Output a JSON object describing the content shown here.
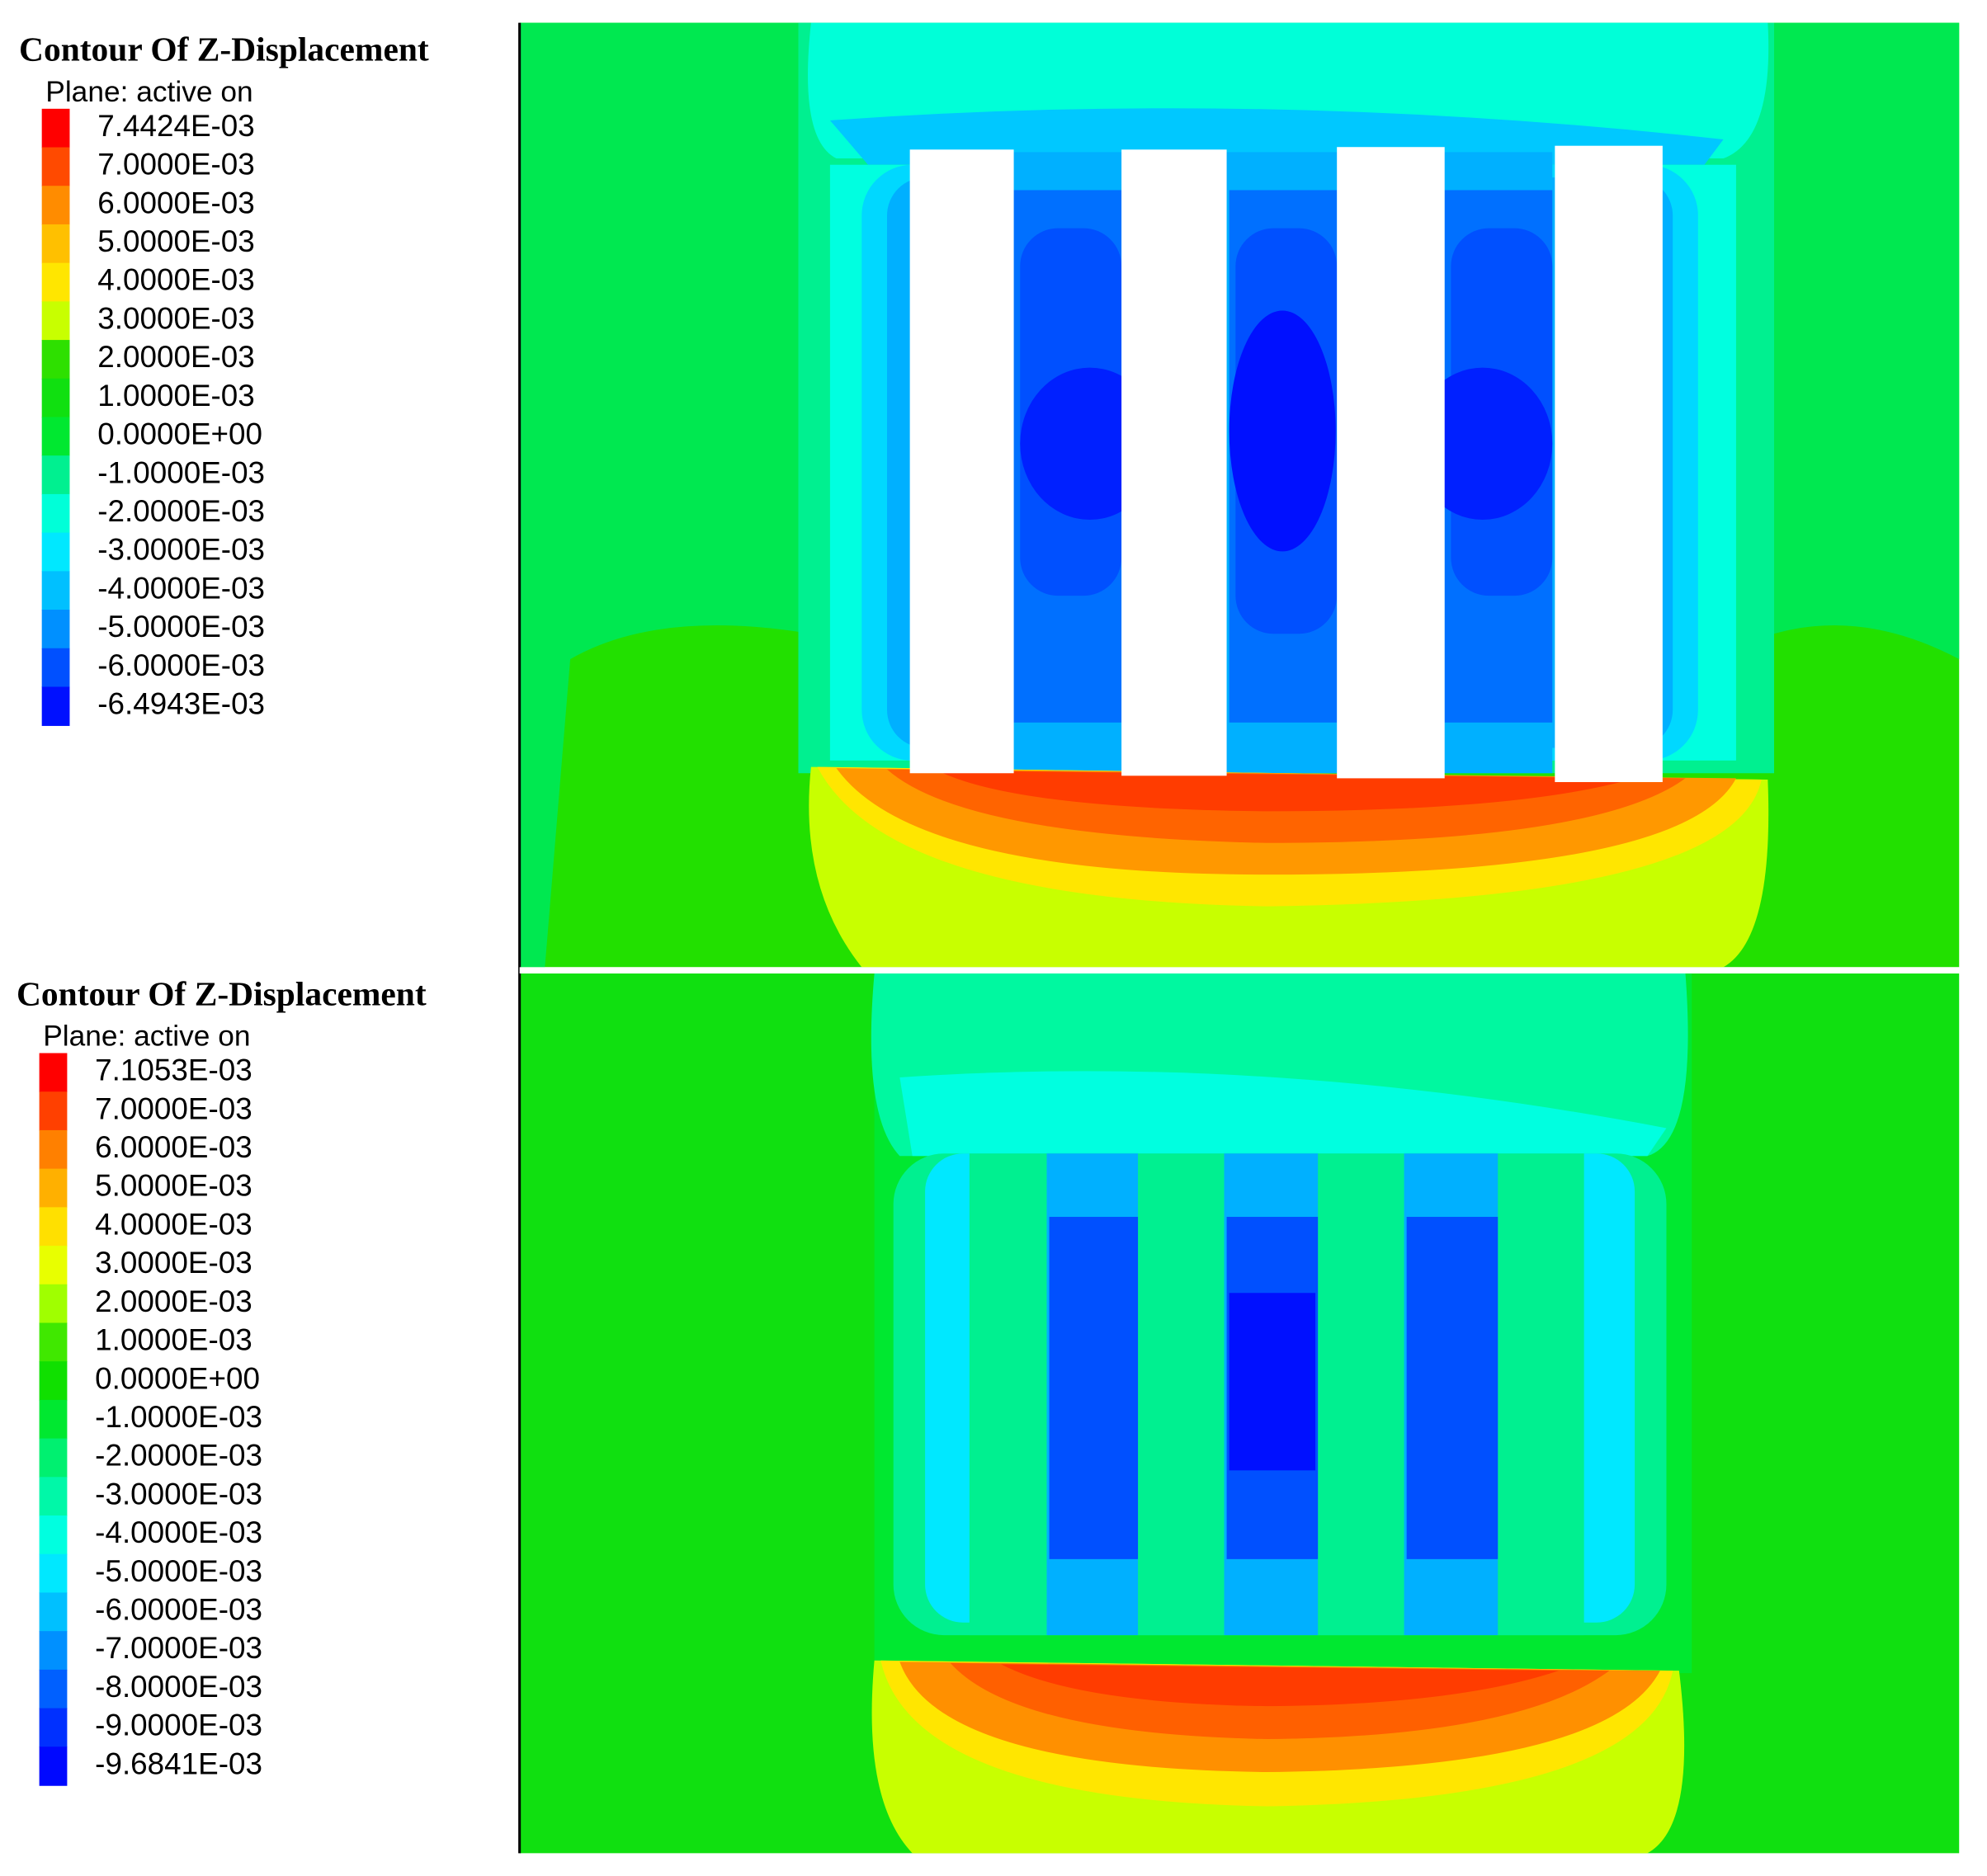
{
  "panels": [
    {
      "title": "Contour Of Z-Displacement",
      "subtitle": "Plane: active on",
      "legend": {
        "labels": [
          "7.4424E-03",
          "7.0000E-03",
          "6.0000E-03",
          "5.0000E-03",
          "4.0000E-03",
          "3.0000E-03",
          "2.0000E-03",
          "1.0000E-03",
          "0.0000E+00",
          "-1.0000E-03",
          "-2.0000E-03",
          "-3.0000E-03",
          "-4.0000E-03",
          "-5.0000E-03",
          "-6.0000E-03",
          "-6.4943E-03"
        ],
        "colors": [
          "#ff0000",
          "#ff4a00",
          "#ff8c00",
          "#ffc000",
          "#ffe600",
          "#c8ff00",
          "#2ee000",
          "#10e010",
          "#00e830",
          "#00f090",
          "#00ffd8",
          "#00e8ff",
          "#00c0ff",
          "#0090ff",
          "#0050ff",
          "#0010ff"
        ]
      }
    },
    {
      "title": "Contour Of Z-Displacement",
      "subtitle": "Plane: active on",
      "legend": {
        "labels": [
          "7.1053E-03",
          "7.0000E-03",
          "6.0000E-03",
          "5.0000E-03",
          "4.0000E-03",
          "3.0000E-03",
          "2.0000E-03",
          "1.0000E-03",
          "0.0000E+00",
          "-1.0000E-03",
          "-2.0000E-03",
          "-3.0000E-03",
          "-4.0000E-03",
          "-5.0000E-03",
          "-6.0000E-03",
          "-7.0000E-03",
          "-8.0000E-03",
          "-9.0000E-03",
          "-9.6841E-03"
        ],
        "colors": [
          "#ff0000",
          "#ff4000",
          "#ff8000",
          "#ffb000",
          "#ffe000",
          "#e8ff00",
          "#a0ff00",
          "#40e800",
          "#10e000",
          "#00e830",
          "#00f070",
          "#00f8a8",
          "#00ffe0",
          "#00e8ff",
          "#00c0ff",
          "#0090ff",
          "#0060ff",
          "#0030ff",
          "#0008ff"
        ]
      }
    }
  ]
}
